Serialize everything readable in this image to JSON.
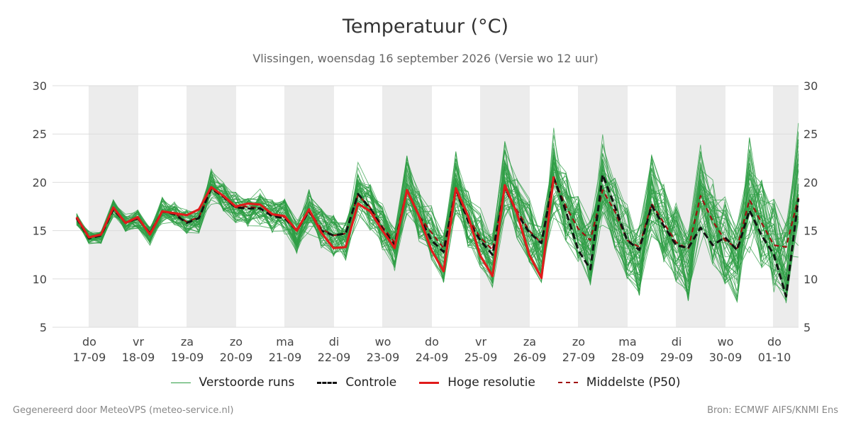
{
  "title": "Temperatuur (°C)",
  "subtitle": "Vlissingen, woensdag 16 september 2026 (Versie wo 12 uur)",
  "footer": {
    "left": "Gegenereerd door MeteoVPS (meteo-service.nl)",
    "right": "Bron: ECMWF AIFS/KNMI Ens"
  },
  "colors": {
    "ensemble": "#2e9e44",
    "control": "#111111",
    "high_res": "#e01b1b",
    "median": "#a01010",
    "shade": "#ececec",
    "grid": "#dddddd"
  },
  "chart_data": {
    "type": "line",
    "ylim": [
      5,
      30
    ],
    "yticks": [
      5,
      10,
      15,
      20,
      25,
      30
    ],
    "grid": true,
    "legend_position": "bottom-center",
    "x_ticks": [
      {
        "day": "do",
        "date": "17-09"
      },
      {
        "day": "vr",
        "date": "18-09"
      },
      {
        "day": "za",
        "date": "19-09"
      },
      {
        "day": "zo",
        "date": "20-09"
      },
      {
        "day": "ma",
        "date": "21-09"
      },
      {
        "day": "di",
        "date": "22-09"
      },
      {
        "day": "wo",
        "date": "23-09"
      },
      {
        "day": "do",
        "date": "24-09"
      },
      {
        "day": "vr",
        "date": "25-09"
      },
      {
        "day": "za",
        "date": "26-09"
      },
      {
        "day": "zo",
        "date": "27-09"
      },
      {
        "day": "ma",
        "date": "28-09"
      },
      {
        "day": "di",
        "date": "29-09"
      },
      {
        "day": "wo",
        "date": "30-09"
      },
      {
        "day": "do",
        "date": "01-10"
      }
    ],
    "series": [
      {
        "name": "Verstoorde runs",
        "style": "thin-green",
        "ensemble_members": 50
      },
      {
        "name": "Controle",
        "style": "black-dashed",
        "values": [
          16.3,
          14.2,
          14.5,
          17.2,
          15.8,
          16.3,
          14.7,
          17.0,
          16.7,
          15.8,
          16.3,
          19.4,
          18.5,
          17.4,
          17.3,
          17.3,
          16.5,
          16.3,
          15.0,
          17.0,
          15.0,
          14.5,
          14.7,
          18.8,
          17.3,
          15.2,
          13.5,
          19.2,
          16.5,
          14.0,
          12.8,
          19.3,
          16.0,
          14.0,
          12.5,
          19.5,
          16.8,
          14.8,
          13.7,
          20.5,
          17.0,
          13.0,
          11.0,
          20.8,
          17.5,
          14.0,
          13.0,
          17.6,
          15.5,
          13.5,
          13.2,
          15.3,
          13.5,
          14.3,
          13.0,
          17.1,
          14.5,
          12.5,
          8.2,
          18.3
        ]
      },
      {
        "name": "Hoge resolutie",
        "style": "red-solid",
        "values": [
          16.4,
          14.3,
          14.6,
          17.4,
          15.8,
          16.4,
          14.6,
          17.0,
          16.8,
          16.6,
          17.2,
          19.5,
          18.6,
          17.5,
          17.8,
          17.7,
          16.7,
          16.5,
          15.0,
          17.2,
          14.8,
          13.2,
          13.3,
          17.8,
          17.0,
          15.0,
          13.2,
          19.2,
          16.5,
          13.0,
          10.8,
          19.4,
          16.5,
          12.4,
          10.3,
          19.7,
          16.8,
          12.5,
          10.1,
          20.6
        ]
      },
      {
        "name": "Middelste (P50)",
        "style": "darkred-dashed",
        "values": [
          16.2,
          14.3,
          14.6,
          17.3,
          15.8,
          16.2,
          14.8,
          17.0,
          16.8,
          15.9,
          16.4,
          19.3,
          18.5,
          17.4,
          17.5,
          17.3,
          16.6,
          16.4,
          15.1,
          17.1,
          15.2,
          14.5,
          14.7,
          18.7,
          17.4,
          15.4,
          13.8,
          19.1,
          16.5,
          14.8,
          13.2,
          19.1,
          16.3,
          14.3,
          13.0,
          19.4,
          17.1,
          15.0,
          13.7,
          20.4,
          17.5,
          15.2,
          14.0,
          19.2,
          17.0,
          14.0,
          13.3,
          17.8,
          15.8,
          13.8,
          13.1,
          18.6,
          16.0,
          14.0,
          13.2,
          18.2,
          15.8,
          13.5,
          13.3,
          18.4
        ]
      }
    ]
  }
}
